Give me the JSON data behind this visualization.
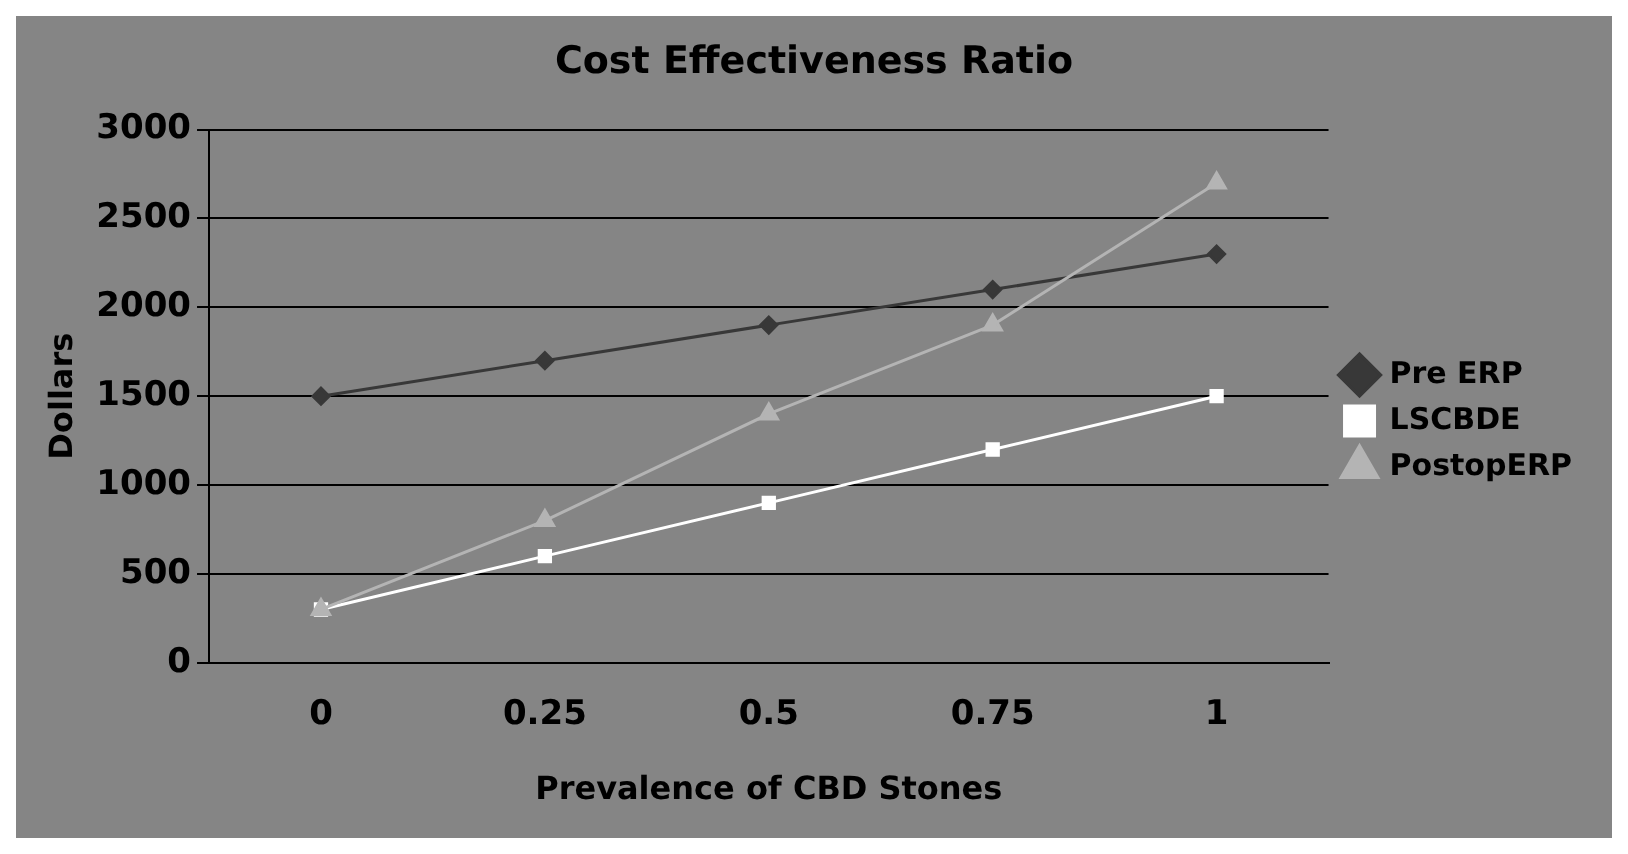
{
  "chart_data": {
    "type": "line",
    "title": "Cost Effectiveness Ratio",
    "xlabel": "Prevalence of CBD Stones",
    "ylabel": "Dollars",
    "categories": [
      "0",
      "0.25",
      "0.5",
      "0.75",
      "1"
    ],
    "series": [
      {
        "name": "Pre ERP",
        "color": "#383838",
        "marker": "diamond",
        "values": [
          1500,
          1700,
          1900,
          2100,
          2300
        ]
      },
      {
        "name": "LSCBDE",
        "color": "#ffffff",
        "marker": "square",
        "values": [
          300,
          600,
          900,
          1200,
          1500
        ]
      },
      {
        "name": "PostopERP",
        "color": "#b4b4b4",
        "marker": "triangle",
        "values": [
          300,
          800,
          1400,
          1900,
          2700
        ]
      }
    ],
    "ylim": [
      0,
      3000
    ],
    "yticks": [
      0,
      500,
      1000,
      1500,
      2000,
      2500,
      3000
    ],
    "grid": "y",
    "legend": "right"
  }
}
